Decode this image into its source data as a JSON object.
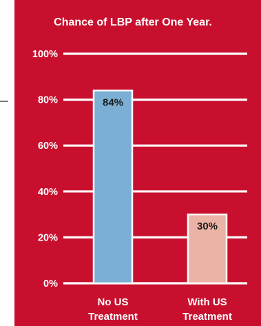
{
  "chart_data": {
    "type": "bar",
    "title": "Chance of LBP after One Year.",
    "xlabel": "",
    "ylabel": "",
    "ylim": [
      0,
      100
    ],
    "y_ticks": [
      0,
      20,
      40,
      60,
      80,
      100
    ],
    "y_tick_labels": [
      "0%",
      "20%",
      "40%",
      "60%",
      "80%",
      "100%"
    ],
    "grid": true,
    "legend": "none",
    "categories": [
      {
        "line1": "No US",
        "line2": "Treatment"
      },
      {
        "line1": "With US",
        "line2": "Treatment"
      }
    ],
    "values": [
      84,
      30
    ],
    "data_labels": [
      "84%",
      "30%"
    ],
    "colors": {
      "background": "#c8102e",
      "bars": [
        "#7bafd4",
        "#ebb3a5"
      ],
      "bar_border": "#ffffff",
      "grid": "#ffffff",
      "text": "#ffffff",
      "data_label": "#1a1a1a"
    }
  }
}
